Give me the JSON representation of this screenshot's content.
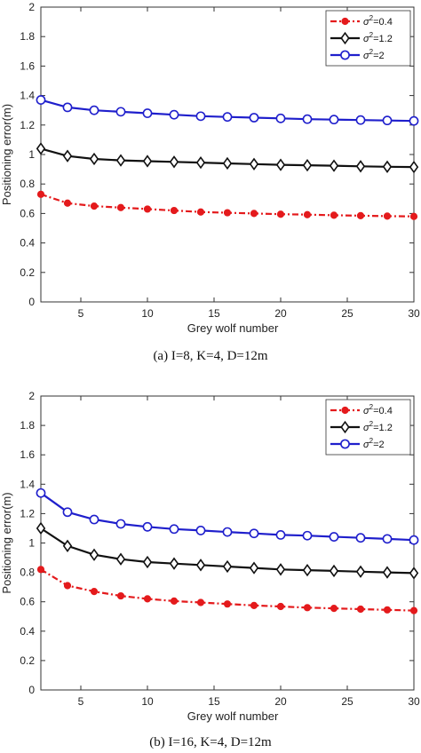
{
  "chart_data": [
    {
      "type": "line",
      "caption": "(a) I=8, K=4, D=12m",
      "xlabel": "Grey wolf number",
      "ylabel": "Positioning error(m)",
      "xlim": [
        2,
        30
      ],
      "ylim": [
        0,
        2
      ],
      "xticks": [
        10,
        15,
        20,
        25,
        30,
        5
      ],
      "yticks": [
        0,
        0.2,
        0.4,
        0.6,
        0.8,
        1,
        1.2,
        1.4,
        1.6,
        1.8,
        2
      ],
      "x": [
        2,
        4,
        6,
        8,
        10,
        12,
        14,
        16,
        18,
        20,
        22,
        24,
        26,
        28,
        30
      ],
      "legend_position": "top-right",
      "series": [
        {
          "name": "σ²=0.4",
          "sup_base": "σ",
          "sup": "2",
          "sup_rest": "=0.4",
          "color": "#e41a1c",
          "marker": "dot",
          "dash": "dashdot",
          "values": [
            0.73,
            0.67,
            0.65,
            0.64,
            0.63,
            0.62,
            0.61,
            0.605,
            0.6,
            0.595,
            0.592,
            0.588,
            0.585,
            0.582,
            0.58
          ]
        },
        {
          "name": "σ²=1.2",
          "sup_base": "σ",
          "sup": "2",
          "sup_rest": "=1.2",
          "color": "#111111",
          "marker": "diamond",
          "dash": "solid",
          "values": [
            1.04,
            0.99,
            0.97,
            0.96,
            0.955,
            0.95,
            0.945,
            0.94,
            0.935,
            0.93,
            0.927,
            0.924,
            0.92,
            0.917,
            0.915
          ]
        },
        {
          "name": "σ²=2",
          "sup_base": "σ",
          "sup": "2",
          "sup_rest": "=2",
          "color": "#1f1fcc",
          "marker": "circle",
          "dash": "solid",
          "values": [
            1.37,
            1.32,
            1.3,
            1.29,
            1.28,
            1.27,
            1.26,
            1.255,
            1.25,
            1.245,
            1.24,
            1.237,
            1.234,
            1.231,
            1.228
          ]
        }
      ]
    },
    {
      "type": "line",
      "caption": "(b) I=16, K=4, D=12m",
      "xlabel": "Grey wolf number",
      "ylabel": "Positioning error(m)",
      "xlim": [
        2,
        30
      ],
      "ylim": [
        0,
        2
      ],
      "xticks": [
        10,
        15,
        20,
        25,
        30,
        5
      ],
      "yticks": [
        0,
        0.2,
        0.4,
        0.6,
        0.8,
        1,
        1.2,
        1.4,
        1.6,
        1.8,
        2
      ],
      "x": [
        2,
        4,
        6,
        8,
        10,
        12,
        14,
        16,
        18,
        20,
        22,
        24,
        26,
        28,
        30
      ],
      "legend_position": "top-right",
      "series": [
        {
          "name": "σ²=0.4",
          "sup_base": "σ",
          "sup": "2",
          "sup_rest": "=0.4",
          "color": "#e41a1c",
          "marker": "dot",
          "dash": "dashdot",
          "values": [
            0.82,
            0.71,
            0.67,
            0.64,
            0.62,
            0.605,
            0.595,
            0.585,
            0.575,
            0.568,
            0.56,
            0.555,
            0.55,
            0.545,
            0.54
          ]
        },
        {
          "name": "σ²=1.2",
          "sup_base": "σ",
          "sup": "2",
          "sup_rest": "=1.2",
          "color": "#111111",
          "marker": "diamond",
          "dash": "solid",
          "values": [
            1.1,
            0.98,
            0.92,
            0.89,
            0.87,
            0.86,
            0.85,
            0.84,
            0.83,
            0.82,
            0.815,
            0.81,
            0.805,
            0.8,
            0.795
          ]
        },
        {
          "name": "σ²=2",
          "sup_base": "σ",
          "sup": "2",
          "sup_rest": "=2",
          "color": "#1f1fcc",
          "marker": "circle",
          "dash": "solid",
          "values": [
            1.34,
            1.21,
            1.16,
            1.13,
            1.11,
            1.095,
            1.085,
            1.075,
            1.065,
            1.055,
            1.05,
            1.042,
            1.035,
            1.028,
            1.02
          ]
        }
      ]
    }
  ]
}
